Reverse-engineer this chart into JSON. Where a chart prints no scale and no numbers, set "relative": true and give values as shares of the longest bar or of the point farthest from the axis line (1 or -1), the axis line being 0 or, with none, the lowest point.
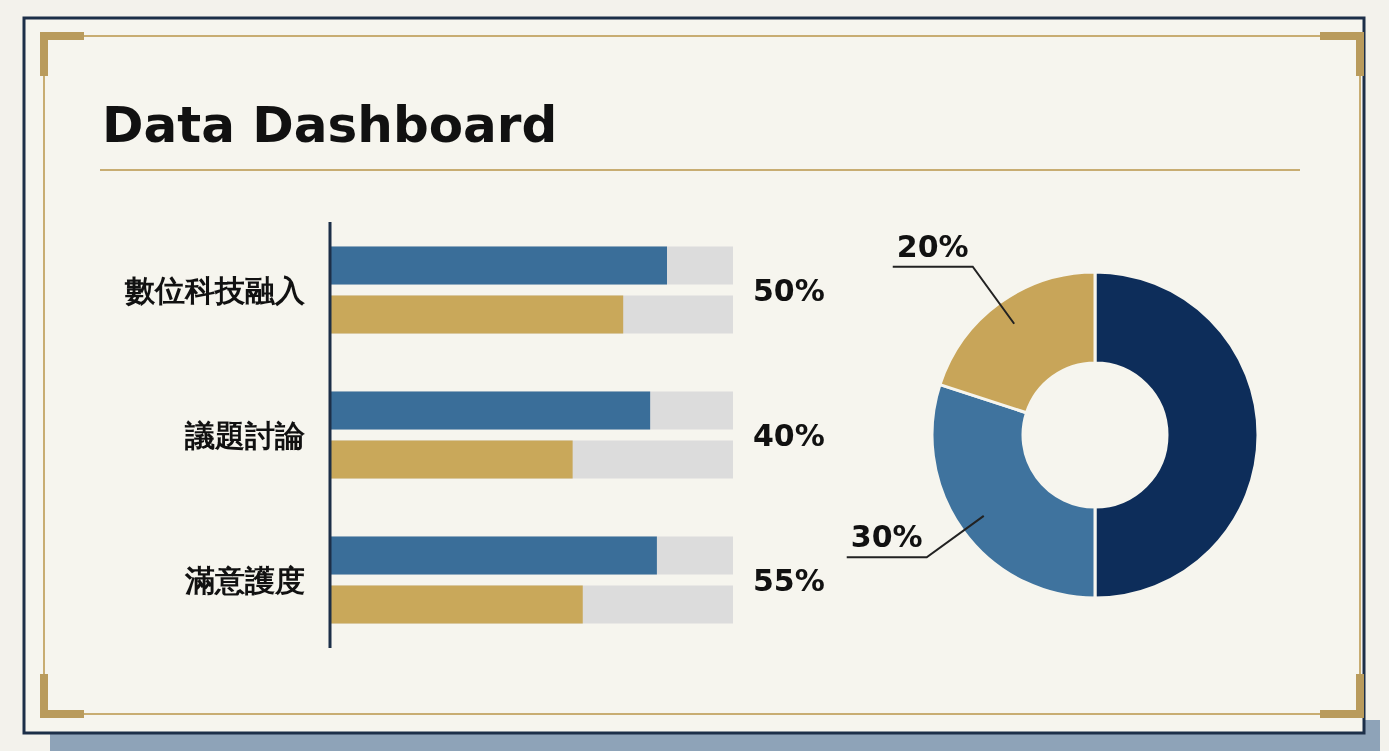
{
  "chart_data": [
    {
      "type": "bar",
      "title": "Data Dashboard",
      "orientation": "horizontal",
      "relative": true,
      "categories": [
        "數位科技融入",
        "議題討論",
        "滿意護度"
      ],
      "series": [
        {
          "color": "#3a6e99",
          "values": [
            1,
            0.95,
            0.97
          ]
        },
        {
          "color": "#c9a85a",
          "values": [
            0.87,
            0.72,
            0.75
          ]
        }
      ],
      "annotations": [
        "50%",
        "40%",
        "55%"
      ]
    },
    {
      "type": "donut",
      "categories": [
        null,
        null,
        null
      ],
      "values": [
        50,
        30,
        20
      ],
      "colors": [
        "#0d2d5a",
        "#3f739e",
        "#c8a559"
      ],
      "value_labels": [
        null,
        "30%",
        "20%"
      ]
    }
  ]
}
